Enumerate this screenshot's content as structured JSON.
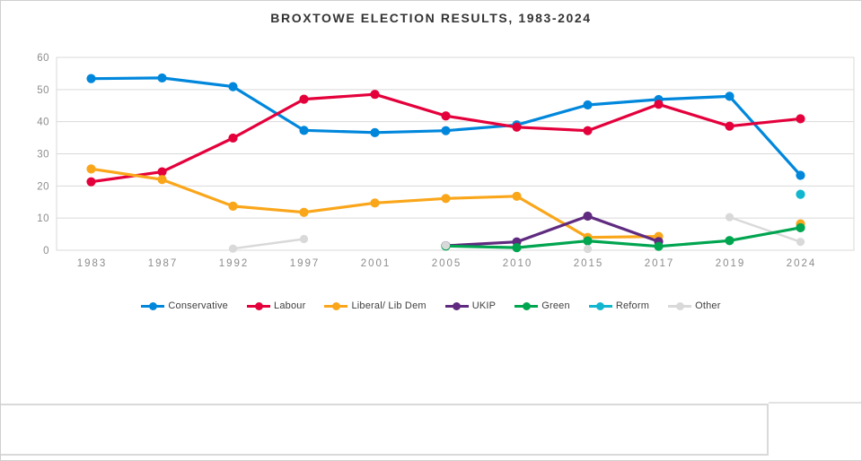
{
  "window": {
    "background": "#ffffff",
    "border_color": "#cfcfcf"
  },
  "chart_data": {
    "type": "line",
    "title": "BROXTOWE ELECTION RESULTS, 1983-2024",
    "categories": [
      "1983",
      "1987",
      "1992",
      "1997",
      "2001",
      "2005",
      "2010",
      "2015",
      "2017",
      "2019",
      "2024"
    ],
    "series": [
      {
        "name": "Conservative",
        "color": "#0087DC",
        "values": [
          53.4,
          53.6,
          50.9,
          37.3,
          36.6,
          37.2,
          39.0,
          45.2,
          46.9,
          47.9,
          23.3
        ]
      },
      {
        "name": "Labour",
        "color": "#E4003B",
        "values": [
          21.3,
          24.4,
          34.9,
          47.0,
          48.5,
          41.8,
          38.3,
          37.2,
          45.4,
          38.6,
          40.9
        ]
      },
      {
        "name": "Liberal/ Lib Dem",
        "color": "#FAA61A",
        "values": [
          25.3,
          22.0,
          13.7,
          11.8,
          14.7,
          16.1,
          16.8,
          4.0,
          4.3,
          null,
          8.2
        ]
      },
      {
        "name": "UKIP",
        "color": "#5F2A7F",
        "values": [
          null,
          null,
          null,
          null,
          null,
          1.4,
          2.6,
          10.6,
          2.7,
          null,
          null
        ]
      },
      {
        "name": "Green",
        "color": "#00A550",
        "values": [
          null,
          null,
          null,
          null,
          null,
          1.3,
          0.8,
          2.9,
          1.2,
          3.0,
          7.0
        ]
      },
      {
        "name": "Reform",
        "color": "#12B6CF",
        "values": [
          null,
          null,
          null,
          null,
          null,
          null,
          null,
          null,
          null,
          null,
          17.4
        ]
      },
      {
        "name": "Other",
        "color": "#D9D9D9",
        "values": [
          null,
          null,
          0.5,
          3.5,
          null,
          1.5,
          null,
          0.4,
          null,
          10.3,
          2.6
        ]
      }
    ],
    "ylim": [
      0,
      60
    ],
    "yticks": [
      "0",
      "10",
      "20",
      "30",
      "40",
      "50",
      "60"
    ],
    "xlabel": "",
    "ylabel": "",
    "grid": "horizontal",
    "legend_position": "bottom",
    "marker": "circle",
    "axis_label_color": "#8C8C8C",
    "grid_color": "#D9D9D9"
  }
}
